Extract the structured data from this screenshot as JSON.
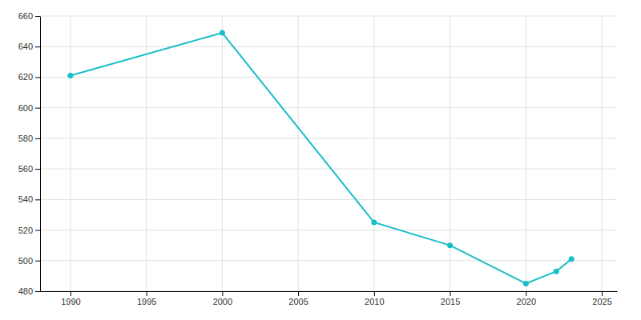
{
  "chart_data": {
    "type": "line",
    "x": [
      1990,
      2000,
      2010,
      2015,
      2020,
      2022,
      2023
    ],
    "values": [
      621,
      649,
      525,
      510,
      485,
      493,
      501
    ],
    "color": "#17BEC8",
    "marker": "circle",
    "xlim": [
      1988,
      2026
    ],
    "ylim": [
      480,
      660
    ],
    "xticks": [
      1990,
      1995,
      2000,
      2005,
      2010,
      2015,
      2020,
      2025
    ],
    "yticks": [
      480,
      500,
      520,
      540,
      560,
      580,
      600,
      620,
      640,
      660
    ],
    "grid": true
  }
}
